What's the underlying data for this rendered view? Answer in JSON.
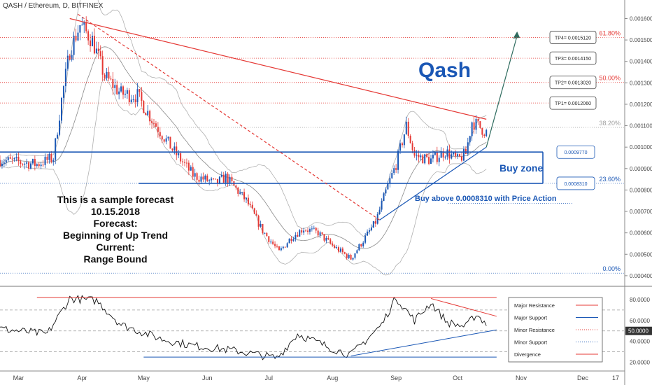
{
  "symbol": "QASH / Ethereum, D, BITFINEX",
  "title": "Qash",
  "forecast_lines": [
    "This is a sample forecast",
    "10.15.2018",
    "Forecast:",
    "Beginning of Up Trend",
    "Current:",
    "Range Bound"
  ],
  "annotations": {
    "buy_zone": "Buy zone",
    "buy_above": "Buy above 0.0008310 with Price Action"
  },
  "targets": [
    {
      "label": "TP4= 0.0015120",
      "value": 0.001512
    },
    {
      "label": "TP3= 0.0014150",
      "value": 0.001415
    },
    {
      "label": "TP2= 0.0013020",
      "value": 0.001302
    },
    {
      "label": "TP1= 0.0012060",
      "value": 0.001206
    }
  ],
  "zone_levels": [
    {
      "label": "0.0009770",
      "value": 0.000977
    },
    {
      "label": "0.0008310",
      "value": 0.000831
    }
  ],
  "fib_levels": [
    {
      "label": "61.80%",
      "value": 0.001512,
      "color": "#e53935"
    },
    {
      "label": "50.00%",
      "value": 0.001302,
      "color": "#e53935"
    },
    {
      "label": "38.20%",
      "value": 0.001092,
      "color": "#9e9e9e"
    },
    {
      "label": "23.60%",
      "value": 0.000831,
      "color": "#1a57b5"
    },
    {
      "label": "0.00%",
      "value": 0.000412,
      "color": "#1a57b5"
    }
  ],
  "price_axis_labels": [
    "0.0016000",
    "0.0015000",
    "0.0014000",
    "0.0013000",
    "0.0012000",
    "0.0011000",
    "0.0010000",
    "0.0009000",
    "0.0008000",
    "0.0007000",
    "0.0006000",
    "0.0005000",
    "0.0004000"
  ],
  "rsi_axis_labels": [
    "80.0000",
    "60.0000",
    "50.0000",
    "40.0000",
    "20.0000"
  ],
  "time_labels": [
    "Mar",
    "Apr",
    "May",
    "Jun",
    "Jul",
    "Aug",
    "Sep",
    "Oct",
    "Nov",
    "Dec",
    "17"
  ],
  "legend": [
    {
      "label": "Major Resistance",
      "color": "#e53935",
      "style": "solid"
    },
    {
      "label": "Major Support",
      "color": "#1a57b5",
      "style": "solid"
    },
    {
      "label": "Minor Resistance",
      "color": "#e53935",
      "style": "dotted"
    },
    {
      "label": "Minor Support",
      "color": "#1a57b5",
      "style": "dotted"
    },
    {
      "label": "Divergence",
      "color": "#e53935",
      "style": "solid"
    }
  ],
  "colors": {
    "up_candle": "#1a57b5",
    "down_candle": "#e53935",
    "blue": "#1a57b5",
    "red": "#e53935"
  },
  "chart_data": {
    "type": "candlestick",
    "x_axis": "date (2018)",
    "y_range": [
      0.00038,
      0.00168
    ],
    "rsi_range": [
      15,
      90
    ],
    "price_path": [
      [
        "2018-02-20",
        0.00094
      ],
      [
        "2018-03-01",
        0.00093
      ],
      [
        "2018-03-10",
        0.00092
      ],
      [
        "2018-03-18",
        0.00095
      ],
      [
        "2018-03-22",
        0.00122
      ],
      [
        "2018-03-26",
        0.00145
      ],
      [
        "2018-03-31",
        0.00157
      ],
      [
        "2018-04-06",
        0.0015
      ],
      [
        "2018-04-12",
        0.00133
      ],
      [
        "2018-04-20",
        0.00125
      ],
      [
        "2018-04-28",
        0.00124
      ],
      [
        "2018-05-05",
        0.00113
      ],
      [
        "2018-05-15",
        0.00099
      ],
      [
        "2018-05-25",
        0.00087
      ],
      [
        "2018-06-05",
        0.00083
      ],
      [
        "2018-06-10",
        0.00086
      ],
      [
        "2018-06-20",
        0.00075
      ],
      [
        "2018-06-28",
        0.00061
      ],
      [
        "2018-07-06",
        0.00051
      ],
      [
        "2018-07-12",
        0.00058
      ],
      [
        "2018-07-18",
        0.00062
      ],
      [
        "2018-07-25",
        0.0006
      ],
      [
        "2018-08-01",
        0.00054
      ],
      [
        "2018-08-10",
        0.00048
      ],
      [
        "2018-08-15",
        0.00055
      ],
      [
        "2018-08-22",
        0.00065
      ],
      [
        "2018-08-28",
        0.00082
      ],
      [
        "2018-09-01",
        0.00092
      ],
      [
        "2018-09-06",
        0.0011
      ],
      [
        "2018-09-10",
        0.00096
      ],
      [
        "2018-09-18",
        0.00094
      ],
      [
        "2018-09-25",
        0.00098
      ],
      [
        "2018-10-01",
        0.00094
      ],
      [
        "2018-10-05",
        0.00097
      ],
      [
        "2018-10-08",
        0.00112
      ],
      [
        "2018-10-15",
        0.00107
      ]
    ],
    "rsi_path": [
      [
        "2018-02-20",
        52
      ],
      [
        "2018-03-15",
        47
      ],
      [
        "2018-03-26",
        81
      ],
      [
        "2018-04-08",
        79
      ],
      [
        "2018-04-20",
        56
      ],
      [
        "2018-05-10",
        42
      ],
      [
        "2018-05-25",
        36
      ],
      [
        "2018-06-15",
        31
      ],
      [
        "2018-07-05",
        24
      ],
      [
        "2018-07-15",
        47
      ],
      [
        "2018-08-01",
        33
      ],
      [
        "2018-08-10",
        27
      ],
      [
        "2018-08-25",
        56
      ],
      [
        "2018-09-01",
        82
      ],
      [
        "2018-09-10",
        60
      ],
      [
        "2018-09-18",
        77
      ],
      [
        "2018-09-26",
        58
      ],
      [
        "2018-10-05",
        54
      ],
      [
        "2018-10-10",
        66
      ],
      [
        "2018-10-15",
        57
      ]
    ],
    "trendlines": [
      {
        "name": "major-resistance",
        "from": [
          "2018-03-26",
          0.0016
        ],
        "to": [
          "2018-10-15",
          0.00113
        ],
        "color": "#e53935",
        "style": "solid"
      },
      {
        "name": "minor-resistance",
        "from": [
          "2018-03-30",
          0.00162
        ],
        "to": [
          "2018-08-24",
          0.00066
        ],
        "color": "#e53935",
        "style": "dashed"
      },
      {
        "name": "major-support",
        "from": [
          "2018-08-24",
          0.00066
        ],
        "to": [
          "2018-10-15",
          0.001
        ],
        "color": "#1a57b5",
        "style": "solid"
      },
      {
        "name": "projection-arrow",
        "from": [
          "2018-10-15",
          0.001
        ],
        "to": [
          "2018-10-30",
          0.00152
        ],
        "color": "#2e6b5e",
        "style": "solid"
      }
    ]
  }
}
